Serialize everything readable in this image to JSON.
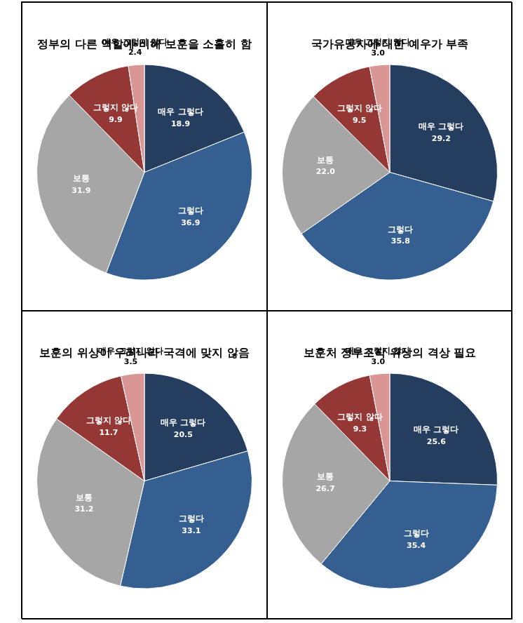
{
  "chart_data": [
    {
      "type": "pie",
      "title": "정부의 다른 역할에 비해 보훈을 소홀히 함",
      "categories": [
        "매우 그렇다",
        "그렇다",
        "보통",
        "그렇지 않다",
        "매우 그렇지 않다"
      ],
      "values": [
        18.9,
        36.9,
        31.9,
        9.9,
        2.4
      ],
      "value_labels": [
        "18.9",
        "36.9",
        "31.9",
        "9.9",
        "2.4"
      ],
      "colors": [
        "#253d5e",
        "#365f91",
        "#a6a6a6",
        "#953735",
        "#d99694"
      ],
      "data_labels": true
    },
    {
      "type": "pie",
      "title": "국가유공자에 대한 예우가 부족",
      "categories": [
        "매우 그렇다",
        "그렇다",
        "보통",
        "그렇지 않다",
        "매우 그렇지 않다"
      ],
      "values": [
        29.2,
        35.8,
        22.0,
        9.5,
        3.0
      ],
      "value_labels": [
        "29.2",
        "35.8",
        "22.0",
        "9.5",
        "3.0"
      ],
      "colors": [
        "#253d5e",
        "#365f91",
        "#a6a6a6",
        "#953735",
        "#d99694"
      ],
      "data_labels": true
    },
    {
      "type": "pie",
      "title": "보훈의 위상이 우리나라 국격에 맞지 않음",
      "categories": [
        "매우 그렇다",
        "그렇다",
        "보통",
        "그렇지 않다",
        "매우 그렇지 않다"
      ],
      "values": [
        20.5,
        33.1,
        31.2,
        11.7,
        3.5
      ],
      "value_labels": [
        "20.5",
        "33.1",
        "31.2",
        "11.7",
        "3.5"
      ],
      "colors": [
        "#253d5e",
        "#365f91",
        "#a6a6a6",
        "#953735",
        "#d99694"
      ],
      "data_labels": true
    },
    {
      "type": "pie",
      "title": "보훈처 정부조직 위상의 격상 필요",
      "categories": [
        "매우 그렇다",
        "그렇다",
        "보통",
        "그렇지 않다",
        "매우 그렇지 않다"
      ],
      "values": [
        25.6,
        35.4,
        26.7,
        9.3,
        3.0
      ],
      "value_labels": [
        "25.6",
        "35.4",
        "26.7",
        "9.3",
        "3.0"
      ],
      "colors": [
        "#253d5e",
        "#365f91",
        "#a6a6a6",
        "#953735",
        "#d99694"
      ],
      "data_labels": true
    }
  ]
}
